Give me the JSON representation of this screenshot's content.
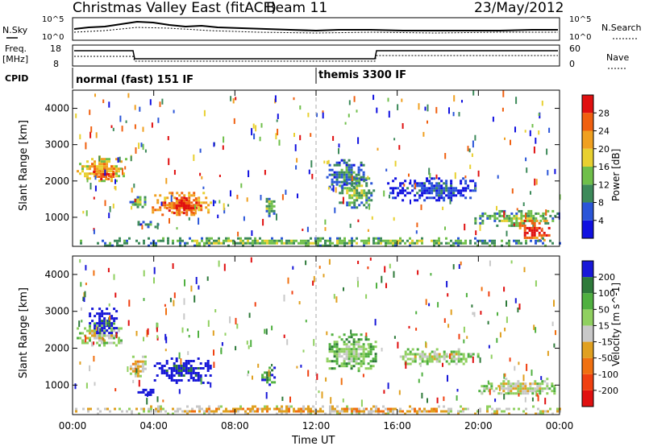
{
  "header": {
    "title": "Christmas Valley East (fitACF)",
    "beam": "Beam 11",
    "date": "23/May/2012"
  },
  "summary_panels": {
    "nsky_label": "N.Sky",
    "nsky_ticks": [
      "10^5",
      "10^0"
    ],
    "nsearch_label": "N.Search",
    "nsearch_ticks": [
      "10^5",
      "10^0"
    ],
    "freq_label": [
      "Freq.",
      "[MHz]"
    ],
    "freq_ticks": [
      "18",
      "8"
    ],
    "nave_label": "Nave",
    "nave_ticks": [
      "60",
      "0"
    ],
    "cpid_label": "CPID",
    "cpid_modes": [
      {
        "name": "normal (fast) 151 IF",
        "start_hour": 0,
        "end_hour": 12
      },
      {
        "name": "themis 3300 IF",
        "start_hour": 12,
        "end_hour": 24
      }
    ]
  },
  "colors": {
    "power_scale": [
      "#1010e0",
      "#2a55d8",
      "#3d8a5a",
      "#6fbf4a",
      "#e8d030",
      "#f0a020",
      "#f06010",
      "#e01010"
    ],
    "velocity_scale": [
      "#1818d8",
      "#2e7a3a",
      "#50b040",
      "#90d060",
      "#c8c8c8",
      "#e0a020",
      "#f07010",
      "#f04010",
      "#e01010"
    ]
  },
  "chart_data": [
    {
      "type": "heatmap",
      "panel": "power",
      "xlabel": "",
      "ylabel": "Slant Range [km]",
      "xlim": [
        0,
        24
      ],
      "ylim": [
        200,
        4500
      ],
      "yticks": [
        "1000",
        "2000",
        "3000",
        "4000"
      ],
      "xticks": [
        "00:00",
        "04:00",
        "08:00",
        "12:00",
        "16:00",
        "20:00",
        "00:00"
      ],
      "colorbar_label": "Power [dB]",
      "colorbar_ticks": [
        "4",
        "8",
        "12",
        "16",
        "20",
        "24",
        "28"
      ],
      "regions": [
        {
          "x0": 0.2,
          "x1": 2.6,
          "y0": 2000,
          "y1": 2700,
          "level": 5
        },
        {
          "x0": 1.0,
          "x1": 2.0,
          "y0": 2050,
          "y1": 2350,
          "level": 7
        },
        {
          "x0": 2.8,
          "x1": 3.6,
          "y0": 1300,
          "y1": 1650,
          "level": 3
        },
        {
          "x0": 3.2,
          "x1": 4.2,
          "y0": 750,
          "y1": 900,
          "level": 2
        },
        {
          "x0": 3.9,
          "x1": 6.8,
          "y0": 1100,
          "y1": 1700,
          "level": 6
        },
        {
          "x0": 4.6,
          "x1": 6.3,
          "y0": 1150,
          "y1": 1550,
          "level": 7
        },
        {
          "x0": 9.4,
          "x1": 9.9,
          "y0": 1000,
          "y1": 1600,
          "level": 3
        },
        {
          "x0": 12.5,
          "x1": 14.5,
          "y0": 1800,
          "y1": 2600,
          "level": 2
        },
        {
          "x0": 13.0,
          "x1": 14.8,
          "y0": 1300,
          "y1": 2100,
          "level": 3
        },
        {
          "x0": 15.5,
          "x1": 20.0,
          "y0": 1500,
          "y1": 2100,
          "level": 1
        },
        {
          "x0": 19.8,
          "x1": 23.9,
          "y0": 800,
          "y1": 1200,
          "level": 3
        },
        {
          "x0": 22.0,
          "x1": 23.5,
          "y0": 350,
          "y1": 1000,
          "level": 7
        },
        {
          "x0": 0.0,
          "x1": 24.0,
          "y0": 250,
          "y1": 450,
          "level": 3
        }
      ]
    },
    {
      "type": "heatmap",
      "panel": "velocity",
      "xlabel": "Time UT",
      "ylabel": "Slant Range [km]",
      "xlim": [
        0,
        24
      ],
      "ylim": [
        200,
        4500
      ],
      "yticks": [
        "1000",
        "2000",
        "3000",
        "4000"
      ],
      "xticks": [
        "00:00",
        "04:00",
        "08:00",
        "12:00",
        "16:00",
        "20:00",
        "00:00"
      ],
      "colorbar_label": "Velocity [m s^-1]",
      "colorbar_ticks": [
        "200",
        "100",
        "50",
        "15",
        "-15",
        "-50",
        "-100",
        "-200"
      ],
      "regions": [
        {
          "x0": 0.2,
          "x1": 2.4,
          "y0": 2050,
          "y1": 2700,
          "level": 4
        },
        {
          "x0": 0.8,
          "x1": 2.2,
          "y0": 2400,
          "y1": 3100,
          "level": 0
        },
        {
          "x0": 2.7,
          "x1": 3.6,
          "y0": 1250,
          "y1": 1800,
          "level": 5
        },
        {
          "x0": 3.2,
          "x1": 4.0,
          "y0": 750,
          "y1": 900,
          "level": 0
        },
        {
          "x0": 4.0,
          "x1": 6.8,
          "y0": 1050,
          "y1": 1750,
          "level": 0
        },
        {
          "x0": 9.3,
          "x1": 9.9,
          "y0": 1000,
          "y1": 1500,
          "level": 2
        },
        {
          "x0": 12.5,
          "x1": 15.0,
          "y0": 1400,
          "y1": 2400,
          "level": 3
        },
        {
          "x0": 16.0,
          "x1": 20.0,
          "y0": 1600,
          "y1": 2000,
          "level": 4
        },
        {
          "x0": 20.0,
          "x1": 23.9,
          "y0": 750,
          "y1": 1200,
          "level": 4
        },
        {
          "x0": 0.0,
          "x1": 24.0,
          "y0": 250,
          "y1": 450,
          "level": 5
        }
      ]
    }
  ]
}
